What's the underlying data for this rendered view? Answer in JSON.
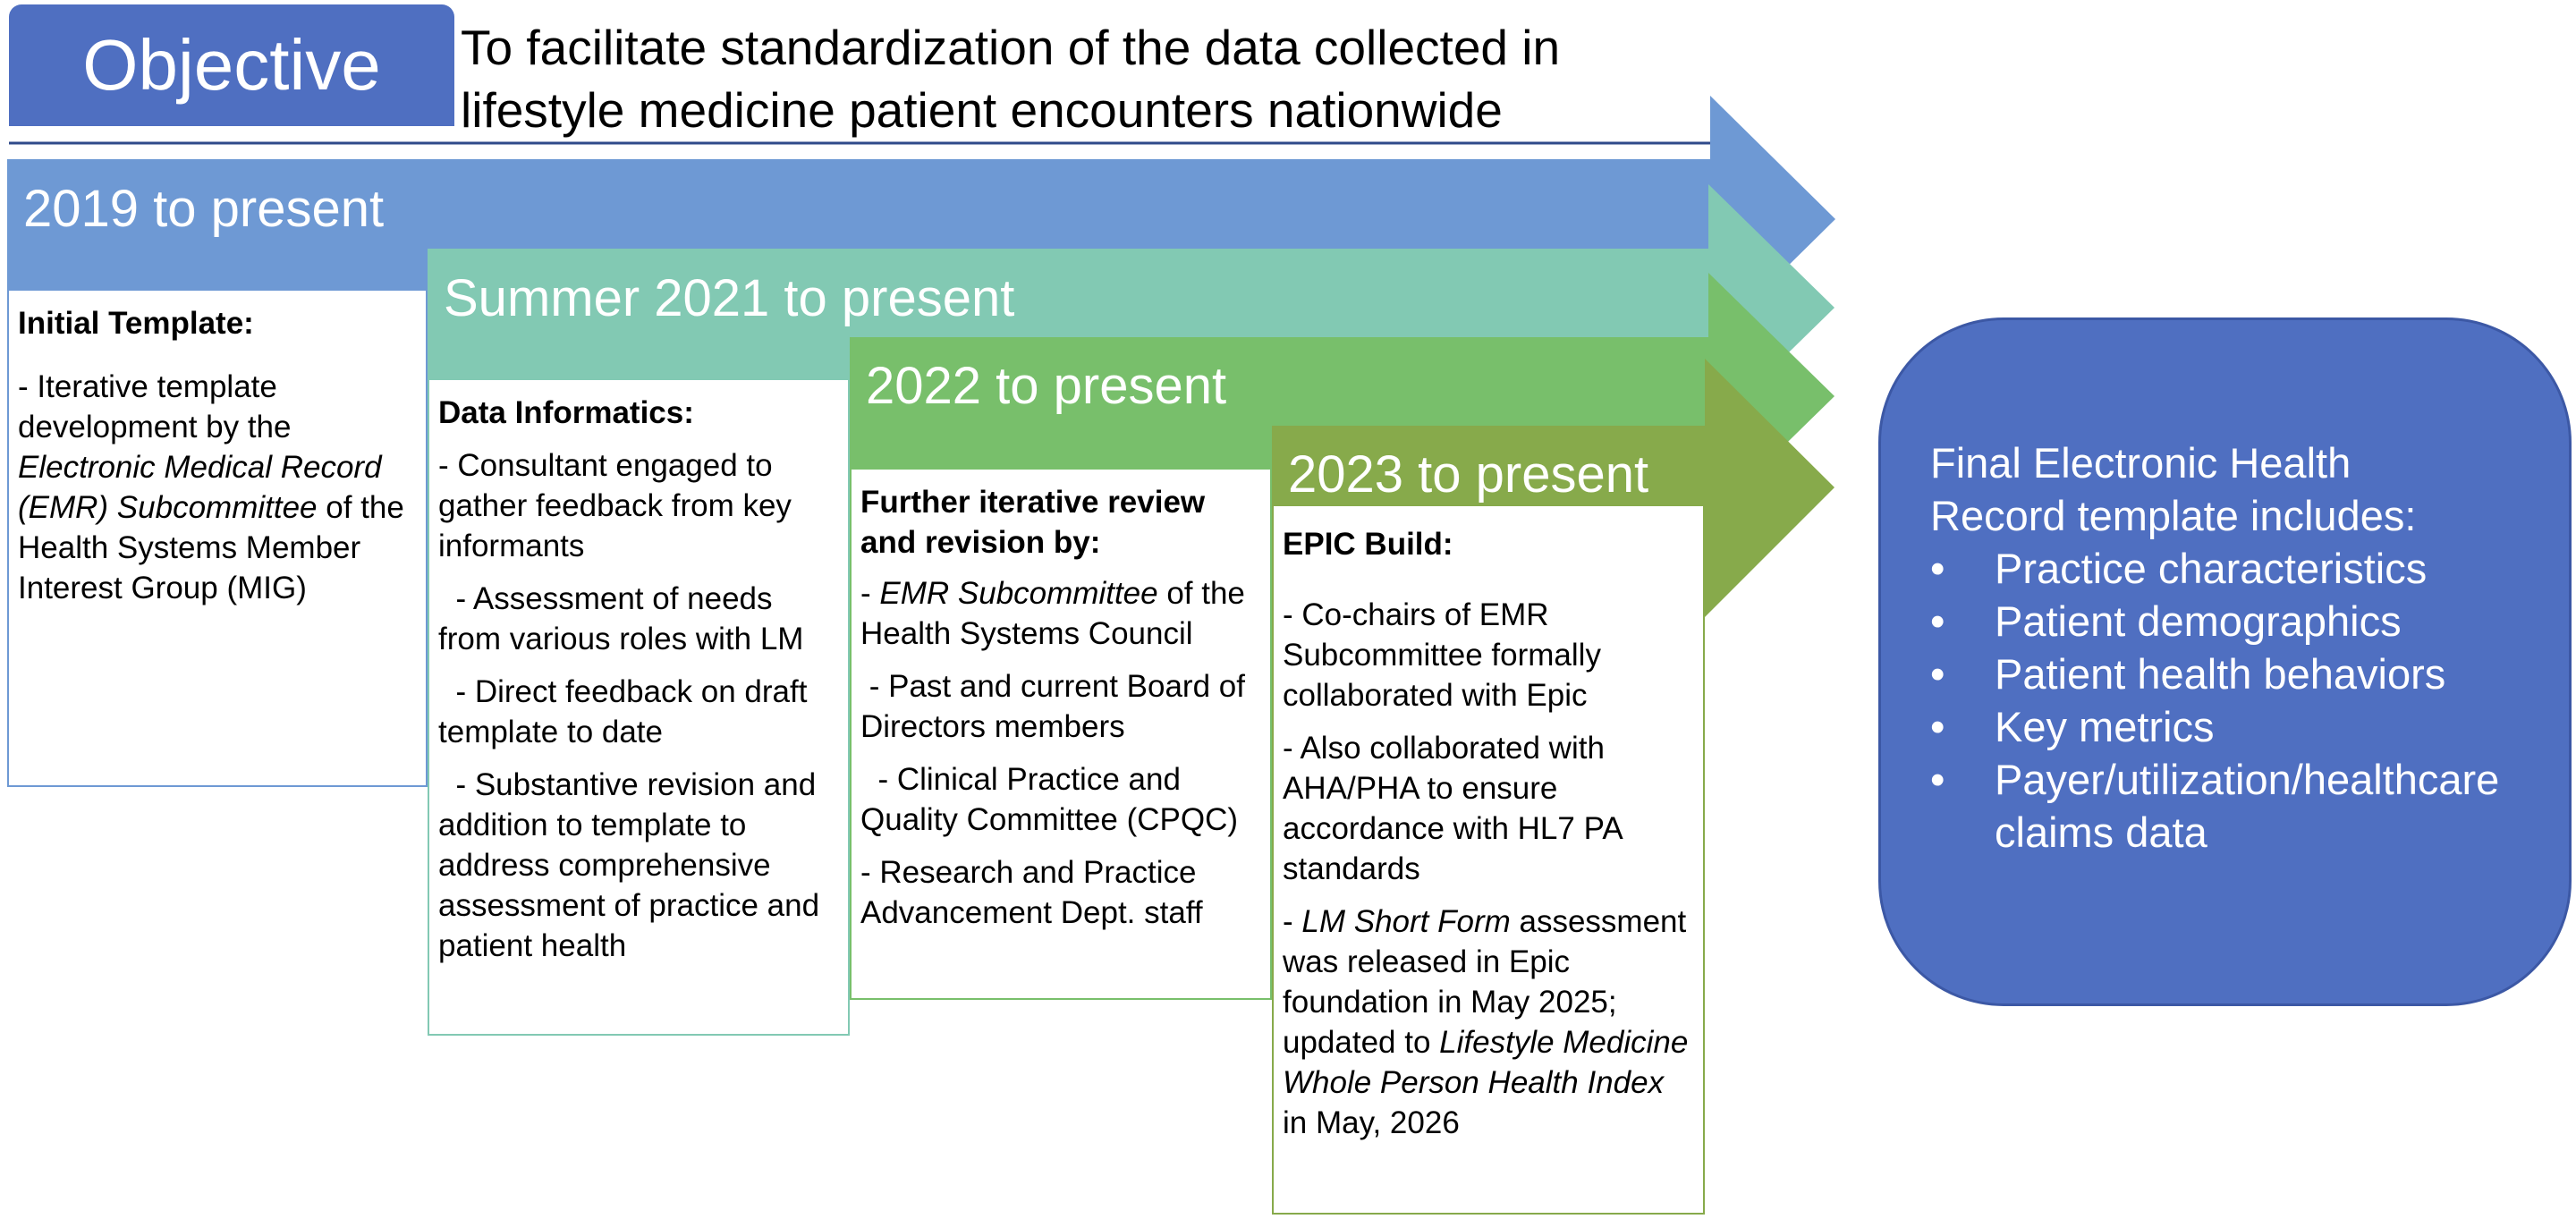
{
  "objective": {
    "label": "Objective",
    "text_line1": "To facilitate standardization of the data collected in",
    "text_line2": "lifestyle medicine patient encounters nationwide"
  },
  "colors": {
    "objective_blue": "#4f6fc1",
    "phase_2019": "#6e99d4",
    "phase_2021": "#82c9b3",
    "phase_2022": "#78bf6b",
    "phase_2023": "#87aa4b",
    "final_box": "#4f6fc1"
  },
  "phases": [
    {
      "label": "2019 to present",
      "heading": "Initial Template:",
      "items": [
        {
          "parts": [
            {
              "text": "- Iterative template development by the "
            },
            {
              "text": "Electronic Medical Record (EMR) Subcommittee",
              "italic": true
            },
            {
              "text": " of the Health Systems Member Interest Group (MIG)"
            }
          ]
        }
      ]
    },
    {
      "label": "Summer 2021 to present",
      "heading": "Data Informatics:",
      "items": [
        {
          "parts": [
            {
              "text": "- Consultant engaged to gather feedback from key informants"
            }
          ]
        },
        {
          "parts": [
            {
              "text": "  - Assessment of needs from various roles with LM"
            }
          ]
        },
        {
          "parts": [
            {
              "text": "  - Direct feedback on draft template to date"
            }
          ]
        },
        {
          "parts": [
            {
              "text": "  - Substantive revision and addition to template to address comprehensive assessment of practice and patient health"
            }
          ]
        }
      ]
    },
    {
      "label": "2022 to present",
      "heading": "Further iterative review and revision by:",
      "items": [
        {
          "parts": [
            {
              "text": "- "
            },
            {
              "text": "EMR Subcommittee",
              "italic": true
            },
            {
              "text": " of the Health Systems Council"
            }
          ]
        },
        {
          "parts": [
            {
              "text": " - Past and current Board of Directors members"
            }
          ]
        },
        {
          "parts": [
            {
              "text": "  - Clinical Practice and Quality Committee (CPQC)"
            }
          ]
        },
        {
          "parts": [
            {
              "text": "- Research and Practice Advancement Dept. staff"
            }
          ]
        }
      ]
    },
    {
      "label": "2023 to present",
      "heading": "EPIC Build:",
      "items": [
        {
          "parts": [
            {
              "text": "- Co-chairs of EMR Subcommittee formally collaborated with Epic"
            }
          ]
        },
        {
          "parts": [
            {
              "text": "- Also collaborated with AHA/PHA to ensure accordance with HL7 PA standards"
            }
          ]
        },
        {
          "parts": [
            {
              "text": "- "
            },
            {
              "text": "LM Short Form",
              "italic": true
            },
            {
              "text": " assessment was released in Epic foundation in May 2025; updated to "
            },
            {
              "text": "Lifestyle Medicine Whole Person Health Index",
              "italic": true
            },
            {
              "text": " in May, 2026"
            }
          ]
        }
      ]
    }
  ],
  "final": {
    "title_line1": "Final Electronic Health",
    "title_line2": "Record template includes:",
    "items": [
      "Practice characteristics",
      "Patient demographics",
      "Patient health behaviors",
      "Key metrics",
      "Payer/utilization/healthcare claims data"
    ]
  }
}
